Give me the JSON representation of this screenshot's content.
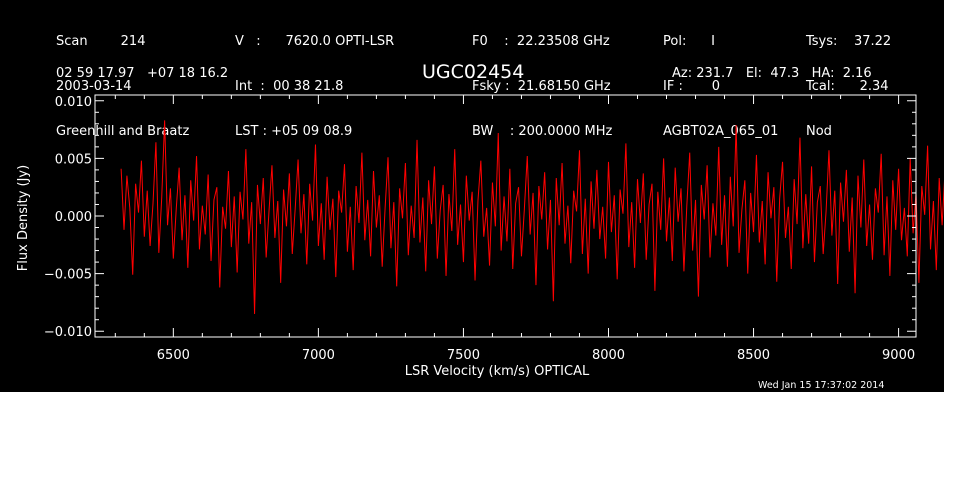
{
  "header": {
    "col1": [
      "Scan        214",
      "2003-03-14",
      "Greenhill and Braatz"
    ],
    "col2": [
      "V   :      7620.0 OPTI-LSR",
      "Int  :  00 38 21.8",
      "LST : +05 09 08.9"
    ],
    "col3": [
      "F0    :  22.23508 GHz",
      "Fsky :  21.68150 GHz",
      "BW    : 200.0000 MHz"
    ],
    "col4": [
      "Pol:      I",
      "IF :       0",
      "AGBT02A_065_01"
    ],
    "col5": [
      "Tsys:    37.22",
      "Tcal:      2.34",
      "Nod"
    ],
    "coords": "02 59 17.97   +07 18 16.2",
    "source": "UGC02454",
    "pointing": "Az: 231.7   El:  47.3   HA:  2.16"
  },
  "footer": {
    "timestamp": "Wed Jan 15 17:37:02 2014"
  },
  "colors": {
    "background": "#000000",
    "axes": "#ffffff",
    "trace": "#ff0000"
  },
  "chart_data": {
    "type": "line",
    "title": "UGC02454",
    "xlabel": "LSR Velocity (km/s) OPTICAL",
    "ylabel": "Flux Density (Jy)",
    "xlim": [
      6230,
      9060
    ],
    "ylim": [
      -0.0105,
      0.0105
    ],
    "xticks": [
      6500,
      7000,
      7500,
      8000,
      8500,
      9000
    ],
    "xtick_labels": [
      "6500",
      "7000",
      "7500",
      "8000",
      "8500",
      "9000"
    ],
    "yticks": [
      -0.01,
      -0.005,
      0.0,
      0.005,
      0.01
    ],
    "ytick_labels": [
      "−0.010",
      "−0.005",
      "0.000",
      "0.005",
      "0.010"
    ],
    "grid": false,
    "series": [
      {
        "color": "#ff0000",
        "x_range": [
          6320,
          8940
        ],
        "x_step": 10,
        "y": [
          0.0041,
          -0.0012,
          0.0035,
          0.0007,
          -0.0051,
          0.0028,
          0.0003,
          0.0048,
          -0.0018,
          0.0022,
          -0.0026,
          0.0011,
          0.0064,
          -0.0032,
          0.0016,
          0.0083,
          -0.0008,
          0.0024,
          -0.0037,
          0.0006,
          0.0042,
          -0.0021,
          0.0018,
          -0.0045,
          0.0031,
          -0.0004,
          0.0052,
          -0.0029,
          0.0009,
          -0.0016,
          0.0036,
          -0.0039,
          0.0014,
          0.0025,
          -0.0062,
          0.0008,
          -0.0011,
          0.0039,
          -0.0027,
          0.0017,
          -0.0049,
          0.0021,
          -0.0003,
          0.0058,
          -0.0024,
          0.0012,
          -0.0085,
          0.0027,
          -0.0007,
          0.0033,
          -0.0036,
          0.0005,
          0.0044,
          -0.0019,
          0.0013,
          -0.0058,
          0.0023,
          -0.0009,
          0.0037,
          -0.0033,
          0.0006,
          0.0049,
          -0.0015,
          0.0019,
          -0.0042,
          0.0028,
          -0.0004,
          0.0062,
          -0.0026,
          0.0011,
          -0.0038,
          0.0034,
          -0.0012,
          0.0015,
          -0.0053,
          0.0022,
          0.0003,
          0.0045,
          -0.0031,
          0.0008,
          -0.0047,
          0.0026,
          -0.0006,
          0.0055,
          -0.0021,
          0.0014,
          -0.0035,
          0.0039,
          -0.001,
          0.0018,
          -0.0044,
          0.0007,
          0.0051,
          -0.0028,
          0.0012,
          -0.0061,
          0.0024,
          -0.0002,
          0.0046,
          -0.0034,
          0.0009,
          -0.0019,
          0.0066,
          -0.0023,
          0.0016,
          -0.0048,
          0.0031,
          -0.0007,
          0.0043,
          -0.0037,
          0.0005,
          0.0027,
          -0.0052,
          0.0019,
          -0.0013,
          0.0058,
          -0.0025,
          0.001,
          -0.004,
          0.0035,
          -0.0004,
          0.0021,
          -0.0056,
          0.0013,
          0.0048,
          -0.0018,
          0.0007,
          -0.0043,
          0.0029,
          -0.0009,
          0.0072,
          -0.003,
          0.0017,
          -0.0022,
          0.0041,
          -0.0046,
          0.0011,
          0.0025,
          -0.0035,
          0.0006,
          0.0052,
          -0.0016,
          0.002,
          -0.006,
          0.0026,
          -0.0003,
          0.0038,
          -0.0029,
          0.0014,
          -0.0074,
          0.0033,
          -0.0008,
          0.0046,
          -0.0024,
          0.0009,
          -0.0041,
          0.0022,
          0.0004,
          0.0057,
          -0.0033,
          0.0015,
          -0.005,
          0.003,
          -0.0011,
          0.004,
          -0.002,
          0.0008,
          -0.0037,
          0.0047,
          -0.0014,
          0.0018,
          -0.0055,
          0.0023,
          0.0002,
          0.0063,
          -0.0027,
          0.0012,
          -0.0045,
          0.0032,
          -0.0006,
          0.0037,
          -0.0038,
          0.001,
          0.0028,
          -0.0065,
          0.0021,
          -0.0012,
          0.005,
          -0.0022,
          0.0016,
          -0.0039,
          0.0042,
          -0.0005,
          0.0024,
          -0.0048,
          0.0009,
          0.0055,
          -0.003,
          0.0014,
          -0.007,
          0.0027,
          -0.0003,
          0.0044,
          -0.0036,
          0.0011,
          -0.0017,
          0.006,
          -0.0025,
          0.0018,
          -0.0044,
          0.0034,
          -0.0009,
          0.0079,
          -0.0032,
          0.0006,
          0.0031,
          -0.005,
          0.002,
          -0.0014,
          0.0053,
          -0.0023,
          0.0013,
          -0.0042,
          0.0038,
          -0.0002,
          0.0025,
          -0.0057,
          0.0015,
          0.0047,
          -0.0019,
          0.0008,
          -0.0046,
          0.0032,
          -0.0007,
          0.0068,
          -0.0028,
          0.0019,
          -0.0024,
          0.0043,
          -0.004,
          0.0012,
          0.0026,
          -0.0033,
          0.0004,
          0.0057,
          -0.0017,
          0.0022,
          -0.0059,
          0.0029,
          -0.0005,
          0.004,
          -0.0031,
          0.0016,
          -0.0067,
          0.0035,
          -0.001,
          0.0049,
          -0.0026,
          0.001,
          -0.0038,
          0.0024,
          0.0003,
          0.0054,
          -0.0034,
          0.0017,
          -0.0052,
          0.0031,
          -0.0012,
          0.0041,
          -0.0021,
          0.0007,
          -0.0035,
          0.005,
          -0.0015,
          0.002,
          -0.0058,
          0.0026,
          0.0001,
          0.0061,
          -0.0029,
          0.0013,
          -0.0047,
          0.0033,
          -0.0008,
          0.0039,
          -0.0039,
          0.0011,
          0.0029,
          -0.0062,
          0.0022,
          -0.0013,
          0.0048,
          -0.0024,
          0.0017,
          -0.0041,
          0.0045,
          -0.0006,
          0.0027,
          -0.0049,
          0.001,
          0.0053,
          -0.0031,
          0.0015,
          -0.0068,
          0.0028,
          -0.0004,
          0.0046,
          -0.0037,
          0.0012,
          -0.0018,
          0.0058,
          -0.0026,
          0.0019,
          -0.0045,
          0.0036,
          -0.001,
          0.007,
          -0.0033,
          0.0007,
          0.0032,
          -0.0053,
          0.0021,
          -0.0015,
          0.0051,
          -0.0022,
          0.0014,
          -0.0043,
          0.004,
          -0.0003,
          0.0026,
          -0.0055,
          0.0016,
          0.0045,
          -0.002,
          0.0009,
          -0.0048,
          0.003,
          -0.0008,
          0.0064,
          -0.0027,
          0.0018,
          -0.0025,
          0.0044,
          -0.0042,
          0.0013,
          0.0027,
          -0.0034,
          0.0005,
          0.0059,
          -0.0018,
          0.0023,
          -0.0061,
          0.0028,
          -0.0006,
          0.0042,
          -0.003,
          0.0015,
          -0.0071,
          0.0034,
          -0.0009,
          0.0048,
          -0.0027,
          0.0011,
          -0.004,
          0.0025,
          0.0004,
          0.0056,
          -0.0033,
          0.0016,
          -0.0051,
          0.0032,
          -0.0011,
          0.0042,
          -0.0022,
          0.0008,
          -0.0036,
          0.0049,
          -0.0014,
          0.0021,
          -0.0057,
          0.0025,
          0.0002,
          0.0062,
          -0.0028,
          0.0014,
          -0.0046,
          0.0034,
          -0.0007,
          0.0038,
          -0.0038,
          0.001,
          0.003,
          -0.006,
          0.0023,
          -0.0012,
          0.005,
          -0.0023,
          0.0016,
          -0.004,
          0.0043,
          -0.0005,
          0.0026,
          -0.0047,
          0.0011,
          0.0054,
          -0.0029,
          0.0014,
          -0.0066,
          0.0029,
          -0.0003,
          0.0047,
          -0.0035,
          0.0012,
          -0.0019,
          0.0061,
          -0.0024,
          0.002,
          -0.0043,
          0.0037,
          -0.0011,
          0.0075,
          -0.0031,
          0.0008,
          0.0033,
          -0.0051,
          0.0022,
          -0.0016,
          0.0052,
          -0.0021,
          0.0013,
          -0.0044,
          0.0041,
          -0.0004,
          0.0025,
          -0.0054,
          0.0017,
          0.0046,
          -0.0021,
          0.001,
          -0.0049,
          0.0031,
          -0.0007,
          0.0066,
          -0.0026,
          0.0017,
          -0.0023,
          0.0045,
          -0.0041,
          0.0012,
          0.0028,
          -0.0035,
          0.0006,
          0.0058,
          -0.0019,
          0.0022,
          -0.0063,
          0.003,
          -0.0005,
          0.0041,
          -0.0032,
          0.0014,
          -0.0069,
          0.0035,
          -0.001,
          0.0047,
          -0.0025,
          0.0011,
          -0.0039,
          0.0024,
          0.0003,
          0.0055,
          -0.0032,
          0.0017,
          -0.0053,
          0.0033,
          -0.0012,
          0.0043,
          -0.0021,
          0.0009,
          -0.0037,
          0.0048,
          -0.0013,
          0.002,
          -0.0056,
          0.0027,
          0.0001,
          0.0064,
          -0.0027,
          0.0015,
          -0.0045,
          0.0035,
          -0.0006,
          0.0039,
          -0.0037,
          0.0011,
          0.0029,
          -0.0063,
          0.0021,
          -0.0011,
          0.0049,
          -0.0024,
          0.0018,
          -0.0042,
          0.0044,
          -0.0006,
          0.0028,
          -0.005,
          0.001,
          0.0056,
          -0.003,
          0.0013,
          -0.0067,
          0.0026,
          -0.0004,
          0.0045,
          -0.0036,
          0.0012,
          -0.0017,
          0.0059,
          -0.0025,
          0.0018,
          -0.0046,
          0.0036,
          -0.0009,
          0.0081,
          -0.0032,
          0.0007,
          0.0032,
          -0.0052,
          0.002,
          -0.0014,
          0.005,
          -0.0022,
          0.0015,
          -0.0041,
          0.0039,
          -0.0003,
          0.0024,
          -0.0058,
          0.0016,
          0.0047,
          -0.002,
          0.0008,
          -0.0047,
          0.003,
          -0.0008,
          0.0067,
          -0.0028,
          0.0019,
          -0.0024,
          0.0042,
          -0.0043,
          0.0011,
          0.0027,
          -0.0034,
          0.0005,
          0.006,
          -0.0018,
          0.0021,
          -0.0064,
          0.0029,
          -0.0005,
          0.004,
          -0.0031,
          0.0016,
          -0.0072,
          0.0033,
          -0.0009,
          0.0046,
          -0.0026,
          0.001,
          -0.0039,
          0.0023,
          0.0002,
          0.0053,
          -0.0033,
          0.0016,
          -0.005,
          0.0031,
          -0.001,
          0.0041,
          -0.0022,
          0.0008,
          -0.0035,
          0.0047,
          -0.0015,
          0.0021,
          -0.0055,
          0.0025,
          0.0003,
          0.0059,
          -0.0029,
          0.0013,
          -0.0046,
          0.0033,
          -0.0007,
          0.0037,
          -0.0039,
          0.001,
          0.003,
          -0.0061,
          0.0022,
          -0.0013,
          0.0049,
          -0.0023,
          0.0016,
          -0.004,
          0.0043,
          -0.0005,
          0.0027,
          -0.0048,
          0.0009,
          0.0052,
          -0.0031,
          0.0014,
          -0.007,
          0.0028,
          -0.0003,
          0.0044,
          -0.0037,
          0.0012,
          -0.0018,
          0.0062,
          -0.0026,
          0.0019,
          -0.0044,
          0.0035,
          -0.001,
          0.0071,
          -0.0033,
          0.0006,
          0.0031,
          -0.005,
          0.0021,
          -0.0015,
          0.0054,
          -0.0022,
          0.0013,
          -0.0043,
          0.004,
          -0.0004,
          0.0026,
          -0.0056,
          0.0017,
          0.0045,
          -0.0019,
          0.0009,
          -0.0049,
          0.0032,
          -0.0006,
          0.0063,
          -0.0027,
          0.0018,
          -0.0025,
          0.0044,
          -0.004,
          0.0012,
          0.0028,
          -0.0036,
          0.0005,
          0.0057,
          -0.0017,
          0.0022,
          -0.0062,
          0.0028,
          -0.0006,
          0.0042,
          -0.003,
          0.0015,
          -0.0068,
          0.0034,
          -0.0011,
          0.0048,
          -0.0024,
          0.001,
          -0.0038,
          0.0026,
          0.0004,
          0.0055,
          -0.0034,
          0.0017,
          -0.0052,
          0.0032,
          -0.0011,
          0.004,
          -0.0021,
          0.0008,
          -0.0036,
          0.0049,
          -0.0014,
          0.002,
          -0.0059,
          0.0025,
          0.0002,
          0.006,
          -0.0028,
          0.0014,
          -0.0047,
          0.0034,
          -0.0008,
          0.0038,
          -0.0038,
          0.0011,
          0.0029,
          -0.0064,
          0.0023,
          -0.0012,
          0.0051,
          -0.0024,
          0.0017,
          -0.0041,
          0.0044,
          -0.0005,
          0.0026,
          -0.0049,
          0.001,
          0.0055,
          -0.0029,
          0.0015,
          -0.0066,
          0.0027,
          -0.0004,
          0.0046,
          -0.0035,
          0.0012,
          -0.0019,
          0.006,
          -0.0024,
          0.0019,
          -0.0045,
          0.0036,
          -0.001,
          0.0087,
          -0.0031,
          0.0008,
          0.0033,
          -0.0072,
          0.0022,
          -0.0016,
          0.0052,
          -0.0021,
          0.0014,
          -0.0044,
          0.0041,
          -0.0004,
          0.0025,
          -0.0055,
          0.0016,
          0.0046,
          -0.002,
          0.0009,
          -0.0048,
          0.0031,
          -0.0007,
          0.0065,
          -0.0027,
          0.0018,
          -0.0024,
          0.0043,
          -0.0041,
          0.0012,
          0.0027,
          -0.0034,
          0.0006,
          0.0056,
          -0.0018,
          0.0021,
          -0.0062,
          0.0029,
          -0.0005,
          0.0041,
          -0.0032,
          0.0015,
          -0.0065,
          0.0034,
          -0.0009,
          0.0049,
          -0.0025,
          0.001,
          -0.004,
          0.0024,
          0.0003,
          0.0054,
          -0.0033,
          0.0016,
          -0.0051,
          0.0032,
          -0.0011,
          0.0042,
          -0.0022,
          0.0009,
          -0.0036,
          0.0048,
          -0.0014,
          0.0021,
          -0.0057,
          0.0026,
          0.0002,
          0.0061,
          -0.0029,
          0.0014,
          -0.0046,
          0.0033,
          -0.0007,
          0.0039,
          -0.0038,
          0.0011,
          0.003,
          -0.006,
          0.0022,
          -0.0012,
          0.005,
          -0.0023,
          0.0017,
          -0.0041,
          0.0044,
          -0.0006,
          0.0027
        ]
      }
    ]
  }
}
